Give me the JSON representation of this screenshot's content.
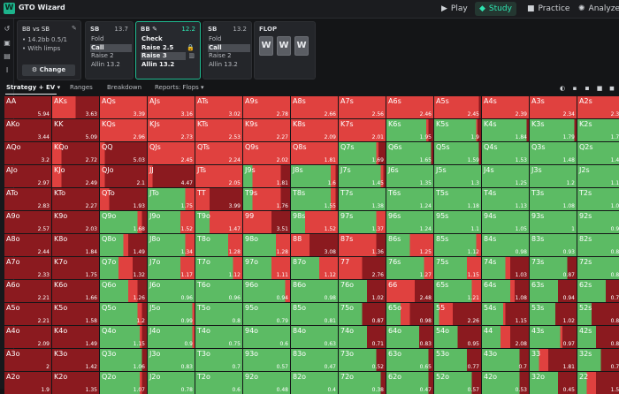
{
  "header": {
    "logo": "W",
    "app_title": "GTO Wizard",
    "nav": [
      {
        "label": "Play",
        "icon": "play-icon",
        "glyph": "▶"
      },
      {
        "label": "Study",
        "icon": "study-icon",
        "glyph": "◆"
      },
      {
        "label": "Practice",
        "icon": "practice-icon",
        "glyph": "■"
      },
      {
        "label": "Analyze",
        "icon": "analyze-icon",
        "glyph": "✺"
      }
    ]
  },
  "sidebar_icons": [
    "history-icon",
    "save-icon",
    "delete-icon",
    "text-cursor-icon"
  ],
  "spot": {
    "title": "BB vs SB",
    "line1": "14.2bb 0.5/1",
    "line2": "With limps",
    "change_label": "Change"
  },
  "actions": [
    {
      "position": "SB",
      "value": "13.7",
      "options": [
        "Fold",
        "Call",
        "Raise 2",
        "Allin 13.2"
      ],
      "selected": [
        1
      ],
      "active": false
    },
    {
      "position": "BB",
      "value": "12.2",
      "options": [
        "Check",
        "Raise 2.5",
        "Raise 3",
        "Allin 13.2"
      ],
      "selected": [
        2
      ],
      "active": true
    },
    {
      "position": "SB",
      "value": "13.2",
      "options": [
        "Fold",
        "Call",
        "Raise 2",
        "Allin 13.2"
      ],
      "selected": [
        1
      ],
      "active": false
    }
  ],
  "flop": {
    "label": "FLOP",
    "cards": [
      "W",
      "W",
      "W"
    ]
  },
  "tabs": [
    "Strategy + EV",
    "Ranges",
    "Breakdown",
    "Reports: Flops"
  ],
  "colors": {
    "raise": "#e0413f",
    "call": "#5cbb64",
    "allin": "#8b1a1f",
    "fold": "#3c6db0"
  },
  "grid": {
    "labels": [
      [
        "AA",
        "AKs",
        "AQs",
        "AJs",
        "ATs",
        "A9s",
        "A8s",
        "A7s",
        "A6s",
        "A5s",
        "A4s",
        "A3s",
        "A2s"
      ],
      [
        "AKo",
        "KK",
        "KQs",
        "KJs",
        "KTs",
        "K9s",
        "K8s",
        "K7s",
        "K6s",
        "K5s",
        "K4s",
        "K3s",
        "K2s"
      ],
      [
        "AQo",
        "KQo",
        "QQ",
        "QJs",
        "QTs",
        "Q9s",
        "Q8s",
        "Q7s",
        "Q6s",
        "Q5s",
        "Q4s",
        "Q3s",
        "Q2s"
      ],
      [
        "AJo",
        "KJo",
        "QJo",
        "JJ",
        "JTs",
        "J9s",
        "J8s",
        "J7s",
        "J6s",
        "J5s",
        "J4s",
        "J3s",
        "J2s"
      ],
      [
        "ATo",
        "KTo",
        "QTo",
        "JTo",
        "TT",
        "T9s",
        "T8s",
        "T7s",
        "T6s",
        "T5s",
        "T4s",
        "T3s",
        "T2s"
      ],
      [
        "A9o",
        "K9o",
        "Q9o",
        "J9o",
        "T9o",
        "99",
        "98s",
        "97s",
        "96s",
        "95s",
        "94s",
        "93s",
        "92s"
      ],
      [
        "A8o",
        "K8o",
        "Q8o",
        "J8o",
        "T8o",
        "98o",
        "88",
        "87s",
        "86s",
        "85s",
        "84s",
        "83s",
        "82s"
      ],
      [
        "A7o",
        "K7o",
        "Q7o",
        "J7o",
        "T7o",
        "97o",
        "87o",
        "77",
        "76s",
        "75s",
        "74s",
        "73s",
        "72s"
      ],
      [
        "A6o",
        "K6o",
        "Q6o",
        "J6o",
        "T6o",
        "96o",
        "86o",
        "76o",
        "66",
        "65s",
        "64s",
        "63s",
        "62s"
      ],
      [
        "A5o",
        "K5o",
        "Q5o",
        "J5o",
        "T5o",
        "95o",
        "85o",
        "75o",
        "65o",
        "55",
        "54s",
        "53s",
        "52s"
      ],
      [
        "A4o",
        "K4o",
        "Q4o",
        "J4o",
        "T4o",
        "94o",
        "84o",
        "74o",
        "64o",
        "54o",
        "44",
        "43s",
        "42s"
      ],
      [
        "A3o",
        "K3o",
        "Q3o",
        "J3o",
        "T3o",
        "93o",
        "83o",
        "73o",
        "63o",
        "53o",
        "43o",
        "33",
        "32s"
      ],
      [
        "A2o",
        "K2o",
        "Q2o",
        "J2o",
        "T2o",
        "92o",
        "82o",
        "72o",
        "62o",
        "52o",
        "42o",
        "32o",
        "22"
      ]
    ],
    "ev": [
      [
        "5.94",
        "3.63",
        "3.39",
        "3.16",
        "3.02",
        "2.78",
        "2.66",
        "2.56",
        "2.46",
        "2.45",
        "2.39",
        "2.34",
        "2.31"
      ],
      [
        "3.44",
        "5.09",
        "2.96",
        "2.73",
        "2.53",
        "2.27",
        "2.09",
        "2.01",
        "1.95",
        "1.9",
        "1.84",
        "1.79",
        "1.75"
      ],
      [
        "3.2",
        "2.72",
        "5.03",
        "2.45",
        "2.24",
        "2.02",
        "1.81",
        "1.69",
        "1.65",
        "1.59",
        "1.53",
        "1.48",
        "1.44"
      ],
      [
        "2.97",
        "2.49",
        "2.1",
        "4.47",
        "2.05",
        "1.81",
        "1.6",
        "1.45",
        "1.35",
        "1.3",
        "1.25",
        "1.2",
        "1.16"
      ],
      [
        "2.83",
        "2.27",
        "1.93",
        "1.75",
        "3.99",
        "1.76",
        "1.55",
        "1.38",
        "1.24",
        "1.18",
        "1.13",
        "1.08",
        "1.04"
      ],
      [
        "2.57",
        "2.03",
        "1.68",
        "1.52",
        "1.47",
        "3.51",
        "1.52",
        "1.37",
        "1.24",
        "1.1",
        "1.05",
        "1",
        "0.95"
      ],
      [
        "2.44",
        "1.84",
        "1.49",
        "1.34",
        "1.28",
        "1.28",
        "3.08",
        "1.36",
        "1.25",
        "1.12",
        "0.98",
        "0.93",
        "0.88"
      ],
      [
        "2.33",
        "1.75",
        "1.32",
        "1.17",
        "1.12",
        "1.11",
        "1.12",
        "2.76",
        "1.27",
        "1.15",
        "1.03",
        "0.87",
        "0.81"
      ],
      [
        "2.21",
        "1.66",
        "1.26",
        "0.96",
        "0.96",
        "0.94",
        "0.98",
        "1.02",
        "2.48",
        "1.21",
        "1.08",
        "0.94",
        "0.78"
      ],
      [
        "2.21",
        "1.58",
        "1.2",
        "0.99",
        "0.8",
        "0.79",
        "0.81",
        "0.87",
        "0.98",
        "2.26",
        "1.15",
        "1.02",
        "0.87"
      ],
      [
        "2.09",
        "1.49",
        "1.15",
        "0.9",
        "0.75",
        "0.6",
        "0.63",
        "0.71",
        "0.83",
        "0.95",
        "2.08",
        "0.97",
        "0.83"
      ],
      [
        "2",
        "1.42",
        "1.06",
        "0.83",
        "0.7",
        "0.57",
        "0.47",
        "0.52",
        "0.65",
        "0.77",
        "0.7",
        "1.81",
        "0.76"
      ],
      [
        "1.9",
        "1.35",
        "1.07",
        "0.78",
        "0.6",
        "0.48",
        "0.4",
        "0.38",
        "0.47",
        "0.57",
        "0.53",
        "0.45",
        "1.58"
      ]
    ],
    "raise_freq": [
      [
        0,
        50,
        100,
        100,
        100,
        100,
        100,
        100,
        100,
        95,
        100,
        100,
        100
      ],
      [
        0,
        0,
        100,
        100,
        100,
        100,
        100,
        100,
        5,
        2,
        0,
        0,
        0
      ],
      [
        0,
        20,
        10,
        100,
        100,
        100,
        100,
        5,
        0,
        0,
        0,
        0,
        0
      ],
      [
        0,
        20,
        10,
        10,
        100,
        60,
        10,
        5,
        0,
        0,
        0,
        0,
        0
      ],
      [
        0,
        0,
        20,
        20,
        30,
        60,
        10,
        0,
        0,
        0,
        0,
        0,
        0
      ],
      [
        0,
        0,
        10,
        30,
        70,
        60,
        70,
        20,
        0,
        0,
        0,
        0,
        0
      ],
      [
        0,
        0,
        10,
        20,
        30,
        30,
        40,
        80,
        50,
        10,
        0,
        0,
        0
      ],
      [
        0,
        0,
        30,
        30,
        20,
        40,
        40,
        50,
        20,
        30,
        10,
        0,
        0
      ],
      [
        0,
        0,
        20,
        0,
        0,
        10,
        0,
        0,
        60,
        20,
        10,
        0,
        0
      ],
      [
        0,
        0,
        10,
        5,
        0,
        0,
        0,
        0,
        20,
        30,
        5,
        0,
        0
      ],
      [
        0,
        0,
        5,
        5,
        0,
        0,
        0,
        0,
        0,
        0,
        20,
        5,
        0
      ],
      [
        0,
        0,
        0,
        0,
        0,
        0,
        0,
        0,
        0,
        0,
        0,
        20,
        0
      ],
      [
        0,
        0,
        5,
        0,
        0,
        0,
        0,
        0,
        0,
        0,
        0,
        0,
        20
      ]
    ],
    "allin_freq": [
      [
        100,
        50,
        0,
        0,
        0,
        0,
        0,
        0,
        0,
        5,
        0,
        0,
        0
      ],
      [
        100,
        100,
        0,
        0,
        0,
        0,
        0,
        0,
        10,
        8,
        5,
        5,
        0
      ],
      [
        100,
        80,
        90,
        0,
        0,
        0,
        0,
        15,
        5,
        5,
        0,
        0,
        0
      ],
      [
        100,
        80,
        90,
        90,
        0,
        20,
        5,
        5,
        0,
        0,
        0,
        0,
        0
      ],
      [
        100,
        100,
        80,
        0,
        70,
        20,
        5,
        0,
        0,
        0,
        0,
        0,
        0
      ],
      [
        100,
        100,
        10,
        0,
        0,
        40,
        0,
        0,
        0,
        0,
        0,
        0,
        0
      ],
      [
        100,
        100,
        40,
        0,
        0,
        0,
        60,
        20,
        0,
        0,
        0,
        0,
        0
      ],
      [
        100,
        100,
        30,
        0,
        0,
        0,
        0,
        50,
        0,
        0,
        40,
        20,
        0
      ],
      [
        100,
        100,
        20,
        0,
        0,
        0,
        0,
        40,
        40,
        0,
        30,
        40,
        40
      ],
      [
        100,
        100,
        10,
        0,
        0,
        0,
        0,
        50,
        50,
        60,
        50,
        45,
        70
      ],
      [
        100,
        100,
        10,
        0,
        0,
        0,
        0,
        40,
        30,
        50,
        40,
        30,
        60
      ],
      [
        100,
        100,
        10,
        0,
        0,
        0,
        0,
        20,
        10,
        30,
        20,
        60,
        50
      ],
      [
        100,
        100,
        10,
        0,
        0,
        0,
        0,
        10,
        10,
        20,
        20,
        40,
        60
      ]
    ]
  }
}
